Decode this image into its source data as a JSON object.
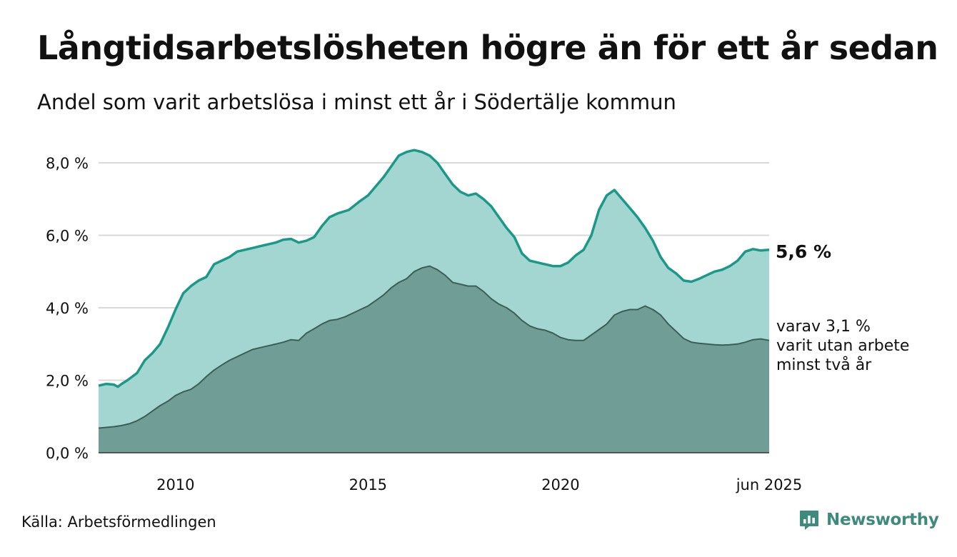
{
  "title": "Långtidsarbetslösheten högre än för ett år sedan",
  "subtitle": "Andel som varit arbetslösa i minst ett år i Södertälje kommun",
  "source": "Källa: Arbetsförmedlingen",
  "brand": "Newsworthy",
  "colors": {
    "area_main": "#a3d6d0",
    "line_main": "#1a9888",
    "area_sub": "#709e97",
    "line_sub": "#3c5e58",
    "grid": "#d9d9d9",
    "brand": "#3e8a7d"
  },
  "chart_data": {
    "type": "area",
    "x_unit": "year",
    "xlim": [
      2008.0,
      2025.42
    ],
    "ylim": [
      0,
      8.4
    ],
    "y_ticks": [
      0,
      2,
      4,
      6,
      8
    ],
    "y_tick_labels": [
      "0,0 %",
      "2,0 %",
      "4,0 %",
      "6,0 %",
      "8,0 %"
    ],
    "x_ticks": [
      2010,
      2015,
      2020,
      2025.42
    ],
    "x_tick_labels": [
      "2010",
      "2015",
      "2020",
      "jun 2025"
    ],
    "grid": true,
    "end_label_main": "5,6 %",
    "end_label_sub": [
      "varav 3,1 %",
      "varit utan arbete",
      "minst två år"
    ],
    "series": [
      {
        "key": "one_year",
        "values": [
          [
            2008.0,
            1.85
          ],
          [
            2008.2,
            1.9
          ],
          [
            2008.4,
            1.88
          ],
          [
            2008.5,
            1.82
          ],
          [
            2008.6,
            1.9
          ],
          [
            2008.75,
            2.0
          ],
          [
            2009.0,
            2.2
          ],
          [
            2009.2,
            2.55
          ],
          [
            2009.4,
            2.75
          ],
          [
            2009.6,
            3.0
          ],
          [
            2009.8,
            3.45
          ],
          [
            2010.0,
            3.95
          ],
          [
            2010.2,
            4.4
          ],
          [
            2010.4,
            4.6
          ],
          [
            2010.6,
            4.75
          ],
          [
            2010.8,
            4.85
          ],
          [
            2011.0,
            5.2
          ],
          [
            2011.2,
            5.3
          ],
          [
            2011.4,
            5.4
          ],
          [
            2011.6,
            5.55
          ],
          [
            2011.8,
            5.6
          ],
          [
            2012.0,
            5.65
          ],
          [
            2012.2,
            5.7
          ],
          [
            2012.4,
            5.75
          ],
          [
            2012.6,
            5.8
          ],
          [
            2012.8,
            5.88
          ],
          [
            2013.0,
            5.9
          ],
          [
            2013.2,
            5.8
          ],
          [
            2013.4,
            5.85
          ],
          [
            2013.6,
            5.95
          ],
          [
            2013.8,
            6.25
          ],
          [
            2014.0,
            6.5
          ],
          [
            2014.2,
            6.6
          ],
          [
            2014.5,
            6.7
          ],
          [
            2014.8,
            6.95
          ],
          [
            2015.0,
            7.1
          ],
          [
            2015.2,
            7.35
          ],
          [
            2015.4,
            7.6
          ],
          [
            2015.6,
            7.9
          ],
          [
            2015.8,
            8.2
          ],
          [
            2016.0,
            8.3
          ],
          [
            2016.2,
            8.35
          ],
          [
            2016.4,
            8.3
          ],
          [
            2016.6,
            8.2
          ],
          [
            2016.8,
            8.0
          ],
          [
            2017.0,
            7.7
          ],
          [
            2017.2,
            7.4
          ],
          [
            2017.4,
            7.2
          ],
          [
            2017.6,
            7.1
          ],
          [
            2017.8,
            7.15
          ],
          [
            2018.0,
            7.0
          ],
          [
            2018.2,
            6.8
          ],
          [
            2018.4,
            6.5
          ],
          [
            2018.6,
            6.2
          ],
          [
            2018.8,
            5.95
          ],
          [
            2019.0,
            5.5
          ],
          [
            2019.2,
            5.3
          ],
          [
            2019.4,
            5.25
          ],
          [
            2019.6,
            5.2
          ],
          [
            2019.8,
            5.15
          ],
          [
            2020.0,
            5.15
          ],
          [
            2020.2,
            5.25
          ],
          [
            2020.4,
            5.45
          ],
          [
            2020.6,
            5.6
          ],
          [
            2020.8,
            6.0
          ],
          [
            2021.0,
            6.7
          ],
          [
            2021.2,
            7.1
          ],
          [
            2021.4,
            7.25
          ],
          [
            2021.6,
            7.0
          ],
          [
            2021.8,
            6.75
          ],
          [
            2022.0,
            6.5
          ],
          [
            2022.2,
            6.2
          ],
          [
            2022.4,
            5.85
          ],
          [
            2022.6,
            5.4
          ],
          [
            2022.8,
            5.1
          ],
          [
            2023.0,
            4.95
          ],
          [
            2023.2,
            4.75
          ],
          [
            2023.4,
            4.72
          ],
          [
            2023.6,
            4.8
          ],
          [
            2023.8,
            4.9
          ],
          [
            2024.0,
            5.0
          ],
          [
            2024.2,
            5.05
          ],
          [
            2024.4,
            5.15
          ],
          [
            2024.6,
            5.3
          ],
          [
            2024.8,
            5.55
          ],
          [
            2025.0,
            5.62
          ],
          [
            2025.2,
            5.58
          ],
          [
            2025.42,
            5.6
          ]
        ]
      },
      {
        "key": "two_years",
        "values": [
          [
            2008.0,
            0.68
          ],
          [
            2008.2,
            0.7
          ],
          [
            2008.4,
            0.72
          ],
          [
            2008.6,
            0.75
          ],
          [
            2008.8,
            0.8
          ],
          [
            2009.0,
            0.88
          ],
          [
            2009.2,
            1.0
          ],
          [
            2009.4,
            1.15
          ],
          [
            2009.6,
            1.3
          ],
          [
            2009.8,
            1.42
          ],
          [
            2010.0,
            1.58
          ],
          [
            2010.2,
            1.68
          ],
          [
            2010.4,
            1.75
          ],
          [
            2010.6,
            1.9
          ],
          [
            2010.8,
            2.1
          ],
          [
            2011.0,
            2.28
          ],
          [
            2011.2,
            2.42
          ],
          [
            2011.4,
            2.55
          ],
          [
            2011.6,
            2.65
          ],
          [
            2011.8,
            2.75
          ],
          [
            2012.0,
            2.85
          ],
          [
            2012.2,
            2.9
          ],
          [
            2012.4,
            2.95
          ],
          [
            2012.6,
            3.0
          ],
          [
            2012.8,
            3.05
          ],
          [
            2013.0,
            3.12
          ],
          [
            2013.2,
            3.1
          ],
          [
            2013.4,
            3.3
          ],
          [
            2013.6,
            3.42
          ],
          [
            2013.8,
            3.55
          ],
          [
            2014.0,
            3.65
          ],
          [
            2014.2,
            3.68
          ],
          [
            2014.4,
            3.75
          ],
          [
            2014.6,
            3.85
          ],
          [
            2014.8,
            3.95
          ],
          [
            2015.0,
            4.05
          ],
          [
            2015.2,
            4.2
          ],
          [
            2015.4,
            4.35
          ],
          [
            2015.6,
            4.55
          ],
          [
            2015.8,
            4.7
          ],
          [
            2016.0,
            4.8
          ],
          [
            2016.2,
            5.0
          ],
          [
            2016.4,
            5.1
          ],
          [
            2016.6,
            5.15
          ],
          [
            2016.8,
            5.05
          ],
          [
            2017.0,
            4.9
          ],
          [
            2017.2,
            4.7
          ],
          [
            2017.4,
            4.65
          ],
          [
            2017.6,
            4.6
          ],
          [
            2017.8,
            4.6
          ],
          [
            2018.0,
            4.45
          ],
          [
            2018.2,
            4.25
          ],
          [
            2018.4,
            4.1
          ],
          [
            2018.6,
            4.0
          ],
          [
            2018.8,
            3.85
          ],
          [
            2019.0,
            3.65
          ],
          [
            2019.2,
            3.5
          ],
          [
            2019.4,
            3.42
          ],
          [
            2019.6,
            3.38
          ],
          [
            2019.8,
            3.3
          ],
          [
            2020.0,
            3.18
          ],
          [
            2020.2,
            3.12
          ],
          [
            2020.4,
            3.1
          ],
          [
            2020.6,
            3.1
          ],
          [
            2020.8,
            3.25
          ],
          [
            2021.0,
            3.4
          ],
          [
            2021.2,
            3.55
          ],
          [
            2021.4,
            3.8
          ],
          [
            2021.6,
            3.9
          ],
          [
            2021.8,
            3.95
          ],
          [
            2022.0,
            3.95
          ],
          [
            2022.2,
            4.05
          ],
          [
            2022.4,
            3.95
          ],
          [
            2022.6,
            3.8
          ],
          [
            2022.8,
            3.55
          ],
          [
            2023.0,
            3.35
          ],
          [
            2023.2,
            3.15
          ],
          [
            2023.4,
            3.05
          ],
          [
            2023.6,
            3.02
          ],
          [
            2023.8,
            3.0
          ],
          [
            2024.0,
            2.98
          ],
          [
            2024.2,
            2.97
          ],
          [
            2024.4,
            2.98
          ],
          [
            2024.6,
            3.0
          ],
          [
            2024.8,
            3.05
          ],
          [
            2025.0,
            3.12
          ],
          [
            2025.2,
            3.14
          ],
          [
            2025.42,
            3.1
          ]
        ]
      }
    ]
  }
}
